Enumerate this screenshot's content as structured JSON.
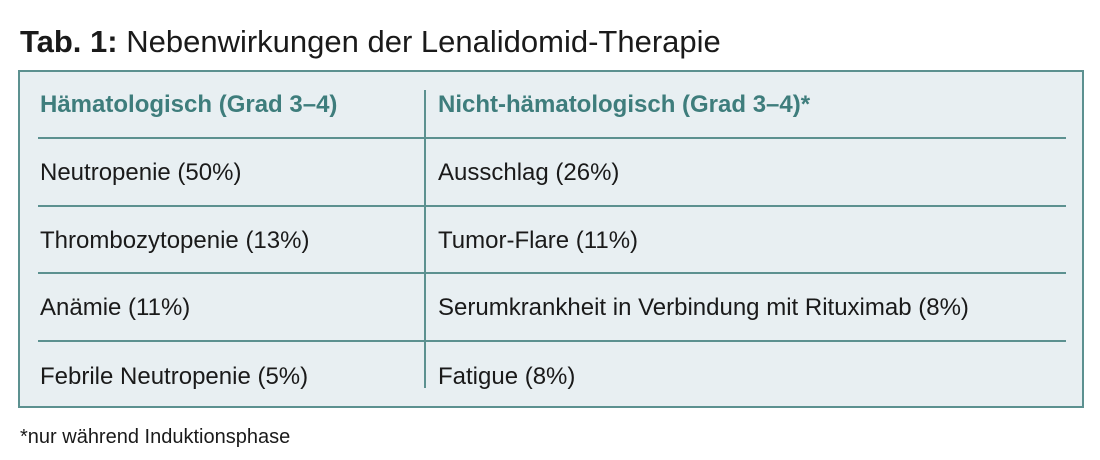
{
  "table": {
    "title_label": "Tab. 1:",
    "title_text": " Nebenwirkungen der Lenalidomid-Therapie",
    "headers": [
      "Hämatologisch (Grad 3–4)",
      "Nicht-hämatologisch (Grad 3–4)*"
    ],
    "rows": [
      [
        "Neutropenie (50%)",
        "Ausschlag (26%)"
      ],
      [
        "Thrombozytopenie (13%)",
        "Tumor-Flare (11%)"
      ],
      [
        "Anämie (11%)",
        "Serumkrankheit in Verbindung mit Rituximab (8%)"
      ],
      [
        "Febrile Neutropenie (5%)",
        "Fatigue (8%)"
      ]
    ],
    "footnote": "*nur während Induktionsphase"
  },
  "colors": {
    "accent": "#5c9190",
    "header_text": "#3e7d7c",
    "table_background": "#e8eff2"
  }
}
